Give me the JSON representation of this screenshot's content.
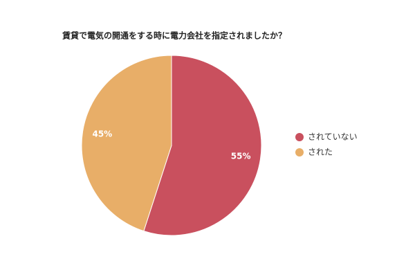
{
  "chart_data": {
    "type": "pie",
    "title": "賃貸で電気の開通をする時に電力会社を指定されましたか？",
    "categories": [
      "されていない",
      "された"
    ],
    "values": [
      55,
      45
    ],
    "value_labels": [
      "55%",
      "45%"
    ],
    "colors": [
      "#c9505e",
      "#e8ae68"
    ],
    "legend": "right"
  }
}
